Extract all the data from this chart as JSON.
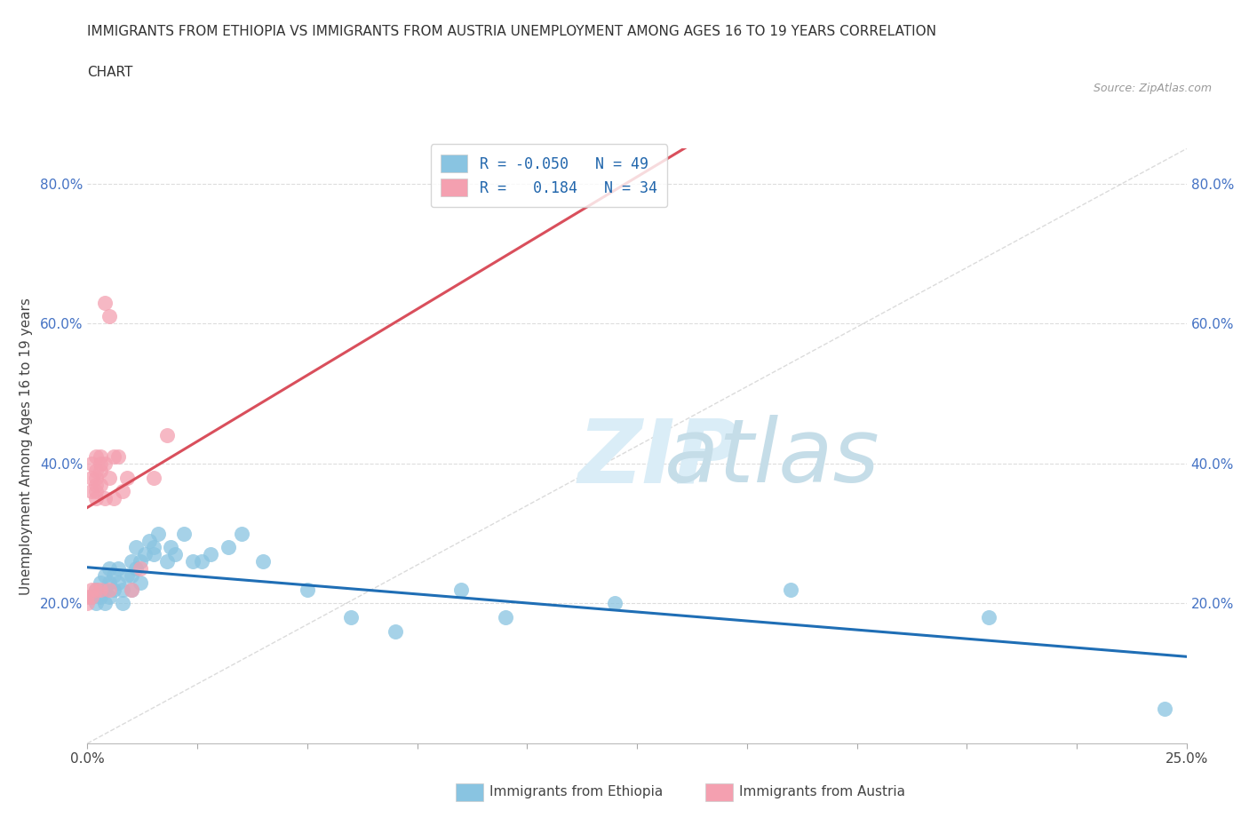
{
  "title_line1": "IMMIGRANTS FROM ETHIOPIA VS IMMIGRANTS FROM AUSTRIA UNEMPLOYMENT AMONG AGES 16 TO 19 YEARS CORRELATION",
  "title_line2": "CHART",
  "source_text": "Source: ZipAtlas.com",
  "ylabel": "Unemployment Among Ages 16 to 19 years",
  "xlabel_ethiopia": "Immigrants from Ethiopia",
  "xlabel_austria": "Immigrants from Austria",
  "xlim": [
    0.0,
    0.25
  ],
  "ylim": [
    0.0,
    0.85
  ],
  "ethiopia_R": -0.05,
  "ethiopia_N": 49,
  "austria_R": 0.184,
  "austria_N": 34,
  "ethiopia_color": "#89c4e1",
  "austria_color": "#f4a0b0",
  "ethiopia_trend_color": "#1f6eb5",
  "austria_trend_color": "#d94f5c",
  "ethiopia_x": [
    0.001,
    0.002,
    0.002,
    0.003,
    0.003,
    0.004,
    0.004,
    0.004,
    0.005,
    0.005,
    0.005,
    0.006,
    0.006,
    0.007,
    0.007,
    0.008,
    0.008,
    0.009,
    0.01,
    0.01,
    0.01,
    0.011,
    0.011,
    0.012,
    0.012,
    0.013,
    0.014,
    0.015,
    0.015,
    0.016,
    0.018,
    0.019,
    0.02,
    0.022,
    0.024,
    0.026,
    0.028,
    0.032,
    0.035,
    0.04,
    0.05,
    0.06,
    0.07,
    0.085,
    0.095,
    0.12,
    0.16,
    0.205,
    0.245
  ],
  "ethiopia_y": [
    0.21,
    0.22,
    0.2,
    0.21,
    0.23,
    0.24,
    0.22,
    0.2,
    0.25,
    0.23,
    0.21,
    0.24,
    0.22,
    0.25,
    0.23,
    0.22,
    0.2,
    0.24,
    0.26,
    0.24,
    0.22,
    0.28,
    0.25,
    0.26,
    0.23,
    0.27,
    0.29,
    0.27,
    0.28,
    0.3,
    0.26,
    0.28,
    0.27,
    0.3,
    0.26,
    0.26,
    0.27,
    0.28,
    0.3,
    0.26,
    0.22,
    0.18,
    0.16,
    0.22,
    0.18,
    0.2,
    0.22,
    0.18,
    0.05
  ],
  "austria_x": [
    0.0,
    0.0,
    0.001,
    0.001,
    0.001,
    0.001,
    0.001,
    0.002,
    0.002,
    0.002,
    0.002,
    0.002,
    0.002,
    0.002,
    0.003,
    0.003,
    0.003,
    0.003,
    0.003,
    0.004,
    0.004,
    0.004,
    0.005,
    0.005,
    0.005,
    0.006,
    0.006,
    0.007,
    0.008,
    0.009,
    0.01,
    0.012,
    0.015,
    0.018
  ],
  "austria_y": [
    0.21,
    0.2,
    0.22,
    0.21,
    0.36,
    0.38,
    0.4,
    0.22,
    0.37,
    0.39,
    0.41,
    0.35,
    0.36,
    0.38,
    0.22,
    0.4,
    0.39,
    0.37,
    0.41,
    0.35,
    0.4,
    0.63,
    0.61,
    0.22,
    0.38,
    0.41,
    0.35,
    0.41,
    0.36,
    0.38,
    0.22,
    0.25,
    0.38,
    0.44
  ]
}
